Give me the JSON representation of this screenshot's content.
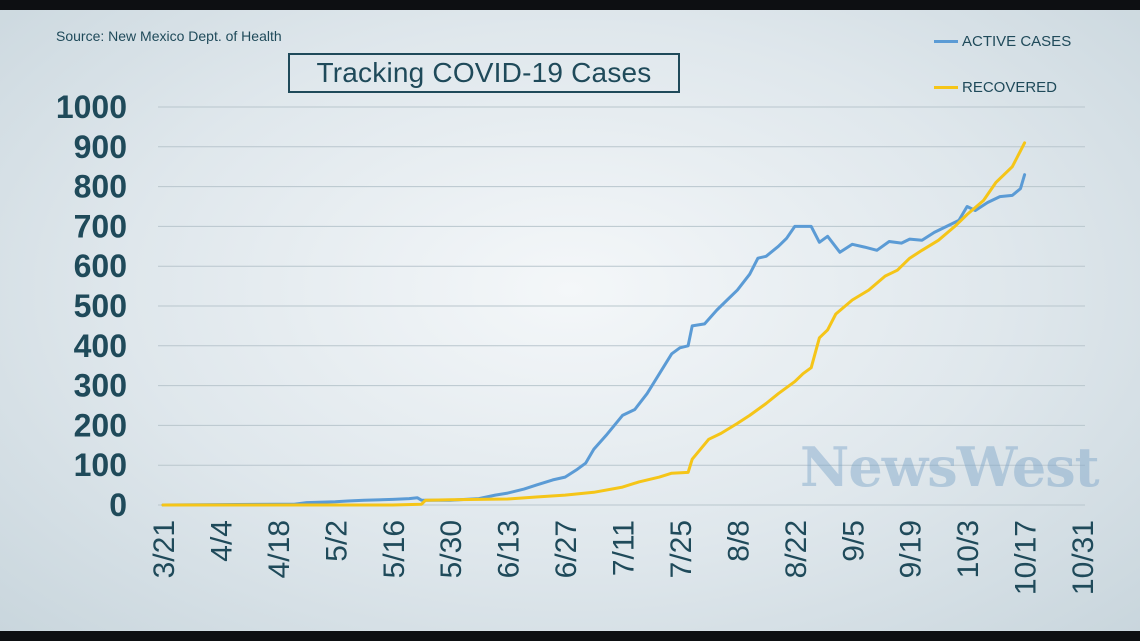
{
  "source": "Source: New Mexico Dept. of Health",
  "watermark": "NewsWest",
  "colors": {
    "active": "#5b9bd5",
    "recovered": "#f5c518",
    "text": "#1f4a5a",
    "grid": "#b9c6cd"
  },
  "chart_data": {
    "type": "line",
    "title": "Tracking COVID-19 Cases",
    "xlabel": "",
    "ylabel": "",
    "ylim": [
      0,
      1000
    ],
    "yticks": [
      "0",
      "100",
      "200",
      "300",
      "400",
      "500",
      "600",
      "700",
      "800",
      "900",
      "1000"
    ],
    "xticks": [
      "3/21",
      "4/4",
      "4/18",
      "5/2",
      "5/16",
      "5/30",
      "6/13",
      "6/27",
      "7/11",
      "7/25",
      "8/8",
      "8/22",
      "9/5",
      "9/19",
      "10/3",
      "10/17",
      "10/31"
    ],
    "grid": true,
    "legend_position": "top-right",
    "x_unit": "date (2020)",
    "series": [
      {
        "name": "ACTIVE CASES",
        "color": "#5b9bd5",
        "points": [
          [
            "3/21",
            0
          ],
          [
            "4/4",
            1
          ],
          [
            "4/18",
            2
          ],
          [
            "4/22",
            2
          ],
          [
            "4/25",
            6
          ],
          [
            "5/2",
            8
          ],
          [
            "5/5",
            10
          ],
          [
            "5/9",
            12
          ],
          [
            "5/16",
            14
          ],
          [
            "5/20",
            16
          ],
          [
            "5/22",
            18
          ],
          [
            "5/23",
            12
          ],
          [
            "5/30",
            12
          ],
          [
            "6/6",
            16
          ],
          [
            "6/10",
            25
          ],
          [
            "6/13",
            30
          ],
          [
            "6/17",
            40
          ],
          [
            "6/20",
            50
          ],
          [
            "6/24",
            63
          ],
          [
            "6/27",
            70
          ],
          [
            "6/30",
            90
          ],
          [
            "7/2",
            105
          ],
          [
            "7/4",
            140
          ],
          [
            "7/7",
            175
          ],
          [
            "7/9",
            200
          ],
          [
            "7/11",
            225
          ],
          [
            "7/14",
            240
          ],
          [
            "7/17",
            280
          ],
          [
            "7/20",
            330
          ],
          [
            "7/23",
            380
          ],
          [
            "7/25",
            395
          ],
          [
            "7/27",
            400
          ],
          [
            "7/28",
            450
          ],
          [
            "7/31",
            455
          ],
          [
            "8/3",
            490
          ],
          [
            "8/6",
            520
          ],
          [
            "8/8",
            540
          ],
          [
            "8/11",
            580
          ],
          [
            "8/13",
            620
          ],
          [
            "8/15",
            625
          ],
          [
            "8/18",
            650
          ],
          [
            "8/20",
            670
          ],
          [
            "8/22",
            700
          ],
          [
            "8/26",
            700
          ],
          [
            "8/28",
            660
          ],
          [
            "8/30",
            675
          ],
          [
            "9/2",
            635
          ],
          [
            "9/5",
            655
          ],
          [
            "9/8",
            648
          ],
          [
            "9/11",
            640
          ],
          [
            "9/14",
            662
          ],
          [
            "9/17",
            658
          ],
          [
            "9/19",
            668
          ],
          [
            "9/22",
            665
          ],
          [
            "9/25",
            685
          ],
          [
            "9/28",
            700
          ],
          [
            "10/1",
            715
          ],
          [
            "10/3",
            750
          ],
          [
            "10/5",
            740
          ],
          [
            "10/8",
            760
          ],
          [
            "10/11",
            775
          ],
          [
            "10/14",
            778
          ],
          [
            "10/16",
            795
          ],
          [
            "10/17",
            830
          ]
        ]
      },
      {
        "name": "RECOVERED",
        "color": "#f5c518",
        "points": [
          [
            "3/21",
            0
          ],
          [
            "4/4",
            0
          ],
          [
            "4/18",
            0
          ],
          [
            "5/2",
            0
          ],
          [
            "5/16",
            0
          ],
          [
            "5/23",
            2
          ],
          [
            "5/24",
            12
          ],
          [
            "5/30",
            13
          ],
          [
            "6/13",
            15
          ],
          [
            "6/20",
            20
          ],
          [
            "6/27",
            25
          ],
          [
            "7/4",
            32
          ],
          [
            "7/11",
            45
          ],
          [
            "7/15",
            58
          ],
          [
            "7/20",
            70
          ],
          [
            "7/23",
            80
          ],
          [
            "7/27",
            82
          ],
          [
            "7/28",
            115
          ],
          [
            "8/1",
            165
          ],
          [
            "8/4",
            180
          ],
          [
            "8/8",
            205
          ],
          [
            "8/11",
            225
          ],
          [
            "8/15",
            255
          ],
          [
            "8/18",
            280
          ],
          [
            "8/22",
            310
          ],
          [
            "8/24",
            330
          ],
          [
            "8/26",
            345
          ],
          [
            "8/28",
            420
          ],
          [
            "8/30",
            440
          ],
          [
            "9/1",
            480
          ],
          [
            "9/5",
            515
          ],
          [
            "9/9",
            540
          ],
          [
            "9/13",
            575
          ],
          [
            "9/16",
            590
          ],
          [
            "9/19",
            620
          ],
          [
            "9/22",
            640
          ],
          [
            "9/26",
            665
          ],
          [
            "9/30",
            700
          ],
          [
            "10/3",
            730
          ],
          [
            "10/7",
            765
          ],
          [
            "10/10",
            810
          ],
          [
            "10/12",
            830
          ],
          [
            "10/14",
            850
          ],
          [
            "10/16",
            890
          ],
          [
            "10/17",
            910
          ]
        ]
      }
    ]
  }
}
